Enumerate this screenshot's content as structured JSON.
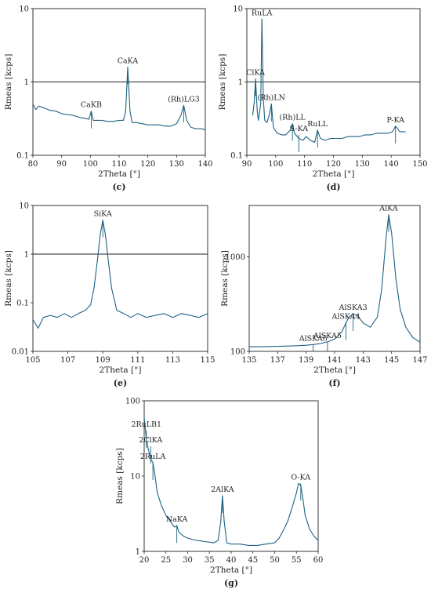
{
  "colors": {
    "line": "#1e6282",
    "axis": "#222222",
    "background": "#ffffff"
  },
  "chart_data": [
    {
      "panel": "(c)",
      "type": "line",
      "xlabel": "2Theta [°]",
      "ylabel": "Rmeas [kcps]",
      "xlim": [
        80,
        140
      ],
      "ylim": [
        0.1,
        10
      ],
      "yscale": "log",
      "xticks": [
        "80",
        "90",
        "100",
        "110",
        "120",
        "130",
        "140"
      ],
      "yticks": [
        "0.1",
        "1",
        "10"
      ],
      "y_reference_line": 1,
      "series": [
        {
          "x": [
            80,
            81,
            82,
            84,
            86,
            88,
            90,
            92,
            94,
            96,
            98,
            99.5,
            100.3,
            101,
            102,
            104,
            106,
            108,
            110,
            111.5,
            112.3,
            113,
            113.8,
            114.5,
            116,
            118,
            120,
            122,
            124,
            126,
            128,
            130,
            131.5,
            132.5,
            133.5,
            135,
            137,
            139,
            140
          ],
          "y": [
            0.5,
            0.42,
            0.47,
            0.44,
            0.41,
            0.4,
            0.37,
            0.36,
            0.35,
            0.33,
            0.32,
            0.31,
            0.4,
            0.3,
            0.3,
            0.3,
            0.29,
            0.29,
            0.3,
            0.3,
            0.4,
            1.6,
            0.4,
            0.28,
            0.28,
            0.27,
            0.26,
            0.26,
            0.26,
            0.25,
            0.25,
            0.27,
            0.35,
            0.48,
            0.3,
            0.24,
            0.23,
            0.23,
            0.22
          ]
        }
      ],
      "annotations": [
        {
          "text": "CaKB",
          "x": 100.3,
          "y": 0.4
        },
        {
          "text": "CaKA",
          "x": 113,
          "y": 1.6
        },
        {
          "text": "(Rh)LG3",
          "x": 132.5,
          "y": 0.48
        }
      ]
    },
    {
      "panel": "(d)",
      "type": "line",
      "xlabel": "2Theta [°]",
      "ylabel": "Rmeas [kcps]",
      "xlim": [
        90,
        150
      ],
      "ylim": [
        0.1,
        10
      ],
      "yscale": "log",
      "xticks": [
        "90",
        "100",
        "110",
        "120",
        "130",
        "140",
        "150"
      ],
      "yticks": [
        "0.1",
        "1",
        "10"
      ],
      "y_reference_line": 1,
      "series": [
        {
          "x": [
            92,
            92.5,
            93,
            93.6,
            94,
            94.8,
            95.2,
            95.7,
            96.2,
            97,
            97.8,
            98.5,
            99.2,
            100.5,
            102,
            103.5,
            105,
            105.8,
            106.5,
            108,
            109.5,
            110.5,
            112,
            113.5,
            114.5,
            115.5,
            117,
            119,
            121,
            123,
            125,
            127,
            129,
            131,
            133,
            135,
            137,
            139,
            140.5,
            141.5,
            143,
            145
          ],
          "y": [
            0.35,
            0.5,
            1.1,
            0.4,
            0.3,
            0.5,
            7.2,
            0.6,
            0.3,
            0.28,
            0.36,
            0.5,
            0.24,
            0.2,
            0.19,
            0.19,
            0.22,
            0.27,
            0.2,
            0.17,
            0.16,
            0.18,
            0.16,
            0.15,
            0.22,
            0.17,
            0.16,
            0.17,
            0.17,
            0.17,
            0.18,
            0.18,
            0.18,
            0.19,
            0.19,
            0.2,
            0.2,
            0.2,
            0.21,
            0.25,
            0.21,
            0.21
          ]
        }
      ],
      "annotations": [
        {
          "text": "RuLA",
          "x": 95.2,
          "y": 7.2
        },
        {
          "text": "ClKA",
          "x": 93,
          "y": 1.1
        },
        {
          "text": "(Rh)LN",
          "x": 98.5,
          "y": 0.5
        },
        {
          "text": "(Rh)LL",
          "x": 105.8,
          "y": 0.27
        },
        {
          "text": "S-KA",
          "x": 108,
          "y": 0.19
        },
        {
          "text": "RuLL",
          "x": 114.5,
          "y": 0.22
        },
        {
          "text": "P-KA",
          "x": 141.5,
          "y": 0.25
        }
      ]
    },
    {
      "panel": "(e)",
      "type": "line",
      "xlabel": "2Theta [°]",
      "ylabel": "Rmeas [kcps]",
      "xlim": [
        105,
        115
      ],
      "ylim": [
        0.01,
        10
      ],
      "yscale": "log",
      "xticks": [
        "105",
        "107",
        "109",
        "111",
        "113",
        "115"
      ],
      "yticks": [
        "0.01",
        "0.1",
        "1",
        "10"
      ],
      "y_reference_line": 1,
      "series": [
        {
          "x": [
            105,
            105.3,
            105.6,
            106,
            106.4,
            106.8,
            107.2,
            107.6,
            108,
            108.3,
            108.5,
            108.7,
            108.85,
            109,
            109.15,
            109.3,
            109.5,
            109.8,
            110.2,
            110.6,
            111,
            111.5,
            112,
            112.5,
            113,
            113.5,
            114,
            114.5,
            115
          ],
          "y": [
            0.045,
            0.03,
            0.05,
            0.055,
            0.05,
            0.06,
            0.05,
            0.06,
            0.07,
            0.09,
            0.2,
            0.8,
            2.5,
            5,
            2.5,
            0.8,
            0.2,
            0.07,
            0.06,
            0.05,
            0.06,
            0.05,
            0.055,
            0.06,
            0.05,
            0.06,
            0.055,
            0.05,
            0.06
          ]
        }
      ],
      "annotations": [
        {
          "text": "SiKA",
          "x": 109,
          "y": 5
        }
      ]
    },
    {
      "panel": "(f)",
      "type": "line",
      "xlabel": "2Theta [°]",
      "ylabel": "Rmeas [kcps]",
      "xlim": [
        135,
        147
      ],
      "ylim": [
        100,
        3500
      ],
      "yscale": "log",
      "xticks": [
        "135",
        "137",
        "139",
        "141",
        "143",
        "145",
        "147"
      ],
      "yticks": [
        "100",
        "1000"
      ],
      "series": [
        {
          "x": [
            135,
            136,
            137,
            138,
            139,
            139.5,
            140,
            140.5,
            141,
            141.5,
            141.8,
            142,
            142.3,
            142.6,
            143,
            143.5,
            144,
            144.3,
            144.6,
            144.8,
            145,
            145.3,
            145.6,
            146,
            146.5,
            147
          ],
          "y": [
            112,
            112,
            113,
            114,
            116,
            118,
            121,
            126,
            135,
            160,
            200,
            230,
            250,
            240,
            200,
            180,
            230,
            450,
            1500,
            2800,
            1800,
            600,
            280,
            180,
            140,
            125
          ]
        }
      ],
      "annotations": [
        {
          "text": "AlKA",
          "x": 144.8,
          "y": 2800
        },
        {
          "text": "AlSKA3",
          "x": 142.3,
          "y": 250
        },
        {
          "text": "AlSKA4",
          "x": 141.8,
          "y": 200
        },
        {
          "text": "AlSKA5",
          "x": 140.5,
          "y": 126
        },
        {
          "text": "AlSKA6",
          "x": 139.5,
          "y": 118
        }
      ]
    },
    {
      "panel": "(g)",
      "type": "line",
      "xlabel": "2Theta [°]",
      "ylabel": "Rmeas [kcps]",
      "xlim": [
        20,
        60
      ],
      "ylim": [
        1,
        100
      ],
      "yscale": "log",
      "xticks": [
        "20",
        "25",
        "30",
        "35",
        "40",
        "45",
        "50",
        "55",
        "60"
      ],
      "yticks": [
        "1",
        "10",
        "100"
      ],
      "series": [
        {
          "x": [
            20,
            20.5,
            21,
            21.5,
            22,
            22.5,
            23,
            24,
            25,
            26,
            27,
            27.5,
            28,
            29,
            30,
            32,
            34,
            36,
            37,
            37.6,
            38,
            38.4,
            39,
            40,
            42,
            44,
            46,
            48,
            50,
            51,
            52,
            53,
            54,
            55,
            55.5,
            56,
            56.5,
            57,
            58,
            59,
            60
          ],
          "y": [
            60,
            30,
            22,
            17,
            15,
            10,
            6,
            4,
            3,
            2.5,
            2.1,
            2.2,
            1.8,
            1.6,
            1.5,
            1.4,
            1.35,
            1.3,
            1.4,
            2.5,
            5.5,
            2.5,
            1.3,
            1.25,
            1.25,
            1.2,
            1.2,
            1.25,
            1.3,
            1.5,
            1.9,
            2.5,
            3.8,
            6,
            8,
            7.5,
            5,
            3,
            2,
            1.6,
            1.4
          ]
        }
      ],
      "annotations": [
        {
          "text": "2RuLB1",
          "x": 20.5,
          "y": 40
        },
        {
          "text": "2ClKA",
          "x": 21.5,
          "y": 25
        },
        {
          "text": "2RuLA",
          "x": 22,
          "y": 15
        },
        {
          "text": "NaKA",
          "x": 27.5,
          "y": 2.2
        },
        {
          "text": "2AlKA",
          "x": 38,
          "y": 5.5
        },
        {
          "text": "O-KA",
          "x": 56,
          "y": 8
        }
      ]
    }
  ]
}
